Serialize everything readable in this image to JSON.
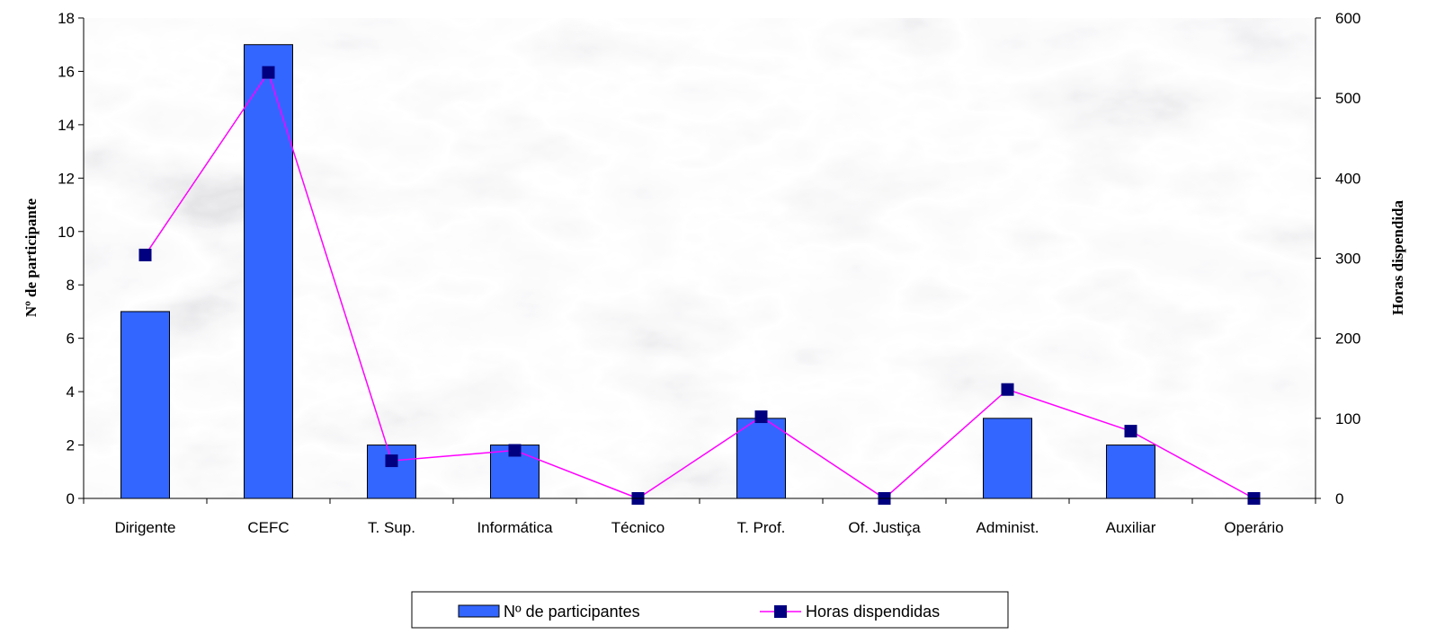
{
  "chart_data": {
    "type": "bar",
    "categories": [
      "Dirigente",
      "CEFC",
      "T. Sup.",
      "Informática",
      "Técnico",
      "T. Prof.",
      "Of. Justiça",
      "Administ.",
      "Auxiliar",
      "Operário"
    ],
    "series": [
      {
        "name": "Nº de participantes",
        "type": "bar",
        "axis": "left",
        "color": "#3366ff",
        "values": [
          7,
          17,
          2,
          2,
          0,
          3,
          0,
          3,
          2,
          0
        ]
      },
      {
        "name": "Horas dispendidas",
        "type": "line",
        "axis": "right",
        "color": "#ff00ff",
        "marker_color": "#000080",
        "values": [
          304,
          532,
          47,
          60,
          0,
          102,
          0,
          136,
          84,
          0
        ]
      }
    ],
    "ylabel": "Nº de participante",
    "y2label": "Horas dispendida",
    "ylim": [
      0,
      18
    ],
    "y2lim": [
      0,
      600
    ],
    "yticks": [
      "0",
      "2",
      "4",
      "6",
      "8",
      "10",
      "12",
      "14",
      "16",
      "18"
    ],
    "y2ticks": [
      "0",
      "100",
      "200",
      "300",
      "400",
      "500",
      "600"
    ],
    "grid": false,
    "legend_position": "bottom",
    "plot_background": "marble texture"
  }
}
